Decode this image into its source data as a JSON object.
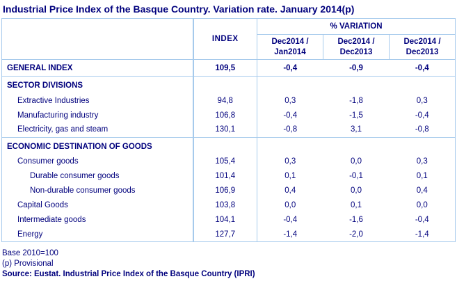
{
  "title": "Industrial Price Index of the Basque Country. Variation rate. January 2014(p)",
  "colors": {
    "text_navy": "#00007D",
    "border_light_blue": "#A6CAEC",
    "background": "#FFFFFF"
  },
  "table": {
    "columns": {
      "index_header": "INDEX",
      "variation_header": "% VARIATION",
      "variation_subheaders": [
        {
          "line1": "Dec2014 /",
          "line2": "Jan2014"
        },
        {
          "line1": "Dec2014 /",
          "line2": "Dec2013"
        },
        {
          "line1": "Dec2014 /",
          "line2": "Dec2013"
        }
      ]
    },
    "rows": [
      {
        "label": "GENERAL INDEX",
        "index": "109,5",
        "v1": "-0,4",
        "v2": "-0,9",
        "v3": "-0,4"
      },
      {
        "label": "SECTOR DIVISIONS",
        "index": "",
        "v1": "",
        "v2": "",
        "v3": ""
      },
      {
        "label": "Extractive Industries",
        "index": "94,8",
        "v1": "0,3",
        "v2": "-1,8",
        "v3": "0,3"
      },
      {
        "label": "Manufacturing industry",
        "index": "106,8",
        "v1": "-0,4",
        "v2": "-1,5",
        "v3": "-0,4"
      },
      {
        "label": "Electricity, gas and steam",
        "index": "130,1",
        "v1": "-0,8",
        "v2": "3,1",
        "v3": "-0,8"
      },
      {
        "label": "ECONOMIC DESTINATION OF GOODS",
        "index": "",
        "v1": "",
        "v2": "",
        "v3": ""
      },
      {
        "label": "Consumer goods",
        "index": "105,4",
        "v1": "0,3",
        "v2": "0,0",
        "v3": "0,3"
      },
      {
        "label": "Durable consumer goods",
        "index": "101,4",
        "v1": "0,1",
        "v2": "-0,1",
        "v3": "0,1"
      },
      {
        "label": "Non-durable consumer goods",
        "index": "106,9",
        "v1": "0,4",
        "v2": "0,0",
        "v3": "0,4"
      },
      {
        "label": "Capital Goods",
        "index": "103,8",
        "v1": "0,0",
        "v2": "0,1",
        "v3": "0,0"
      },
      {
        "label": "Intermediate goods",
        "index": "104,1",
        "v1": "-0,4",
        "v2": "-1,6",
        "v3": "-0,4"
      },
      {
        "label": "Energy",
        "index": "127,7",
        "v1": "-1,4",
        "v2": "-2,0",
        "v3": "-1,4"
      }
    ]
  },
  "footer": {
    "base_note": "Base 2010=100",
    "provisional_note": "(p) Provisional",
    "source_note": "Source: Eustat. Industrial Price Index of the Basque Country (IPRI)"
  }
}
